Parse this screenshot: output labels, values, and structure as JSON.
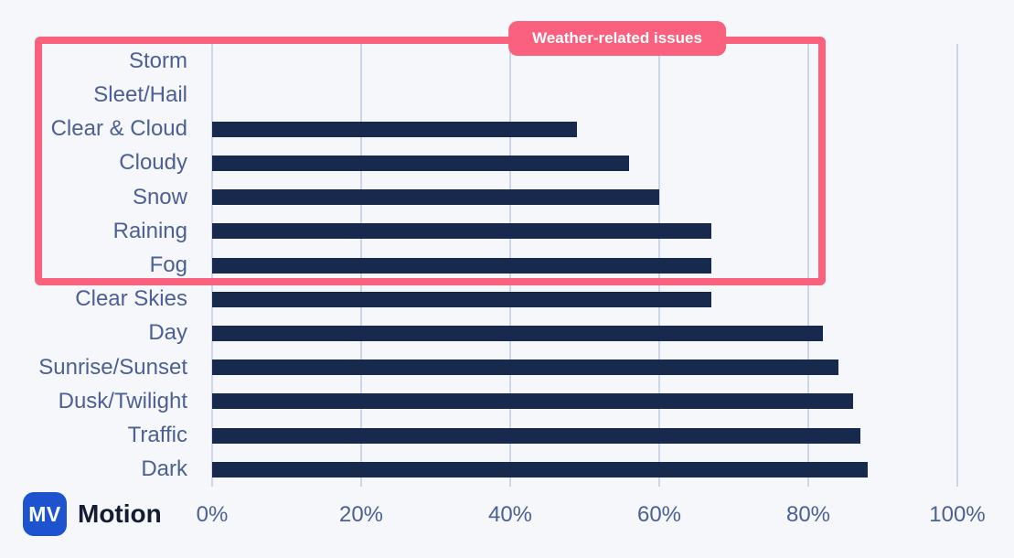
{
  "page": {
    "background_color": "#f5f7fa"
  },
  "brand": {
    "logo_text": "MV",
    "name": "Motion",
    "logo_color": "#1d53cf"
  },
  "annotation": {
    "badge_label": "Weather-related issues",
    "highlight_color": "#f9617f"
  },
  "chart_data": {
    "type": "bar",
    "orientation": "horizontal",
    "title": "",
    "xlabel": "",
    "ylabel": "",
    "categories": [
      "Storm",
      "Sleet/Hail",
      "Clear & Cloud",
      "Cloudy",
      "Snow",
      "Raining",
      "Fog",
      "Clear Skies",
      "Day",
      "Sunrise/Sunset",
      "Dusk/Twilight",
      "Traffic",
      "Dark"
    ],
    "values": [
      0,
      0,
      49,
      56,
      60,
      67,
      67,
      67,
      82,
      84,
      86,
      87,
      88
    ],
    "x_ticks": [
      "0%",
      "20%",
      "40%",
      "60%",
      "80%",
      "100%"
    ],
    "x_tick_values": [
      0,
      20,
      40,
      60,
      80,
      100
    ],
    "xlim": [
      0,
      100
    ],
    "grid": "vertical-only",
    "legend_position": "none",
    "bar_color": "#172a4e",
    "label_color": "#4d6096",
    "gridline_color": "#ccd6e8",
    "highlight": {
      "label": "Weather-related issues",
      "categories": [
        "Storm",
        "Sleet/Hail",
        "Clear & Cloud",
        "Cloudy",
        "Snow",
        "Raining",
        "Fog"
      ],
      "color": "#f9617f"
    }
  }
}
